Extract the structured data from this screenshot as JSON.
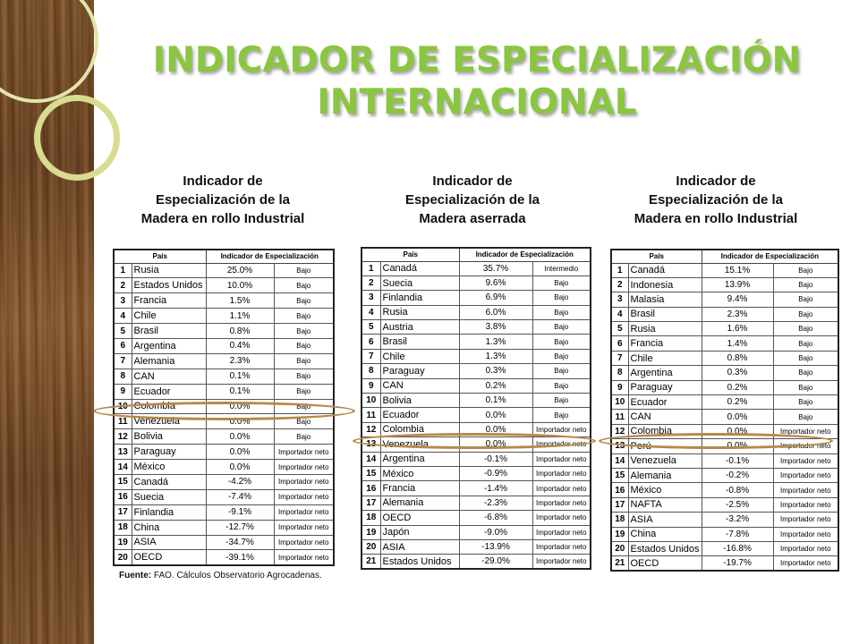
{
  "title": {
    "line1": "INDICADOR DE ESPECIALIZACIÓN",
    "line2": "INTERNACIONAL"
  },
  "colors": {
    "title": "#8ac63f",
    "highlight": "#b8884a"
  },
  "tables": [
    {
      "caption": [
        "Indicador de",
        "Especialización de la",
        "Madera en rollo Industrial"
      ],
      "headers": [
        "País",
        "Indicador de Especialización"
      ],
      "rows": [
        {
          "n": "1",
          "country": "Rusia",
          "value": "25.0%",
          "level": "Bajo"
        },
        {
          "n": "2",
          "country": "Estados Unidos",
          "value": "10.0%",
          "level": "Bajo"
        },
        {
          "n": "3",
          "country": "Francia",
          "value": "1.5%",
          "level": "Bajo"
        },
        {
          "n": "4",
          "country": "Chile",
          "value": "1.1%",
          "level": "Bajo"
        },
        {
          "n": "5",
          "country": "Brasil",
          "value": "0.8%",
          "level": "Bajo"
        },
        {
          "n": "6",
          "country": "Argentina",
          "value": "0.4%",
          "level": "Bajo"
        },
        {
          "n": "7",
          "country": "Alemania",
          "value": "2.3%",
          "level": "Bajo"
        },
        {
          "n": "8",
          "country": "CAN",
          "value": "0.1%",
          "level": "Bajo"
        },
        {
          "n": "9",
          "country": "Ecuador",
          "value": "0.1%",
          "level": "Bajo"
        },
        {
          "n": "10",
          "country": "Colombia",
          "value": "0.0%",
          "level": "Bajo"
        },
        {
          "n": "11",
          "country": "Venezuela",
          "value": "0.0%",
          "level": "Bajo"
        },
        {
          "n": "12",
          "country": "Bolivia",
          "value": "0.0%",
          "level": "Bajo"
        },
        {
          "n": "13",
          "country": "Paraguay",
          "value": "0.0%",
          "level": "Importador neto"
        },
        {
          "n": "14",
          "country": "México",
          "value": "0.0%",
          "level": "Importador neto"
        },
        {
          "n": "15",
          "country": "Canadá",
          "value": "-4.2%",
          "level": "Importador neto"
        },
        {
          "n": "16",
          "country": "Suecia",
          "value": "-7.4%",
          "level": "Importador neto"
        },
        {
          "n": "17",
          "country": "Finlandia",
          "value": "-9.1%",
          "level": "Importador neto"
        },
        {
          "n": "18",
          "country": "China",
          "value": "-12.7%",
          "level": "Importador neto"
        },
        {
          "n": "19",
          "country": "ASIA",
          "value": "-34.7%",
          "level": "Importador neto"
        },
        {
          "n": "20",
          "country": "OECD",
          "value": "-39.1%",
          "level": "Importador neto"
        }
      ]
    },
    {
      "caption": [
        "Indicador de",
        "Especialización de la",
        "Madera aserrada"
      ],
      "headers": [
        "País",
        "Indicador de Especialización"
      ],
      "rows": [
        {
          "n": "1",
          "country": "Canadá",
          "value": "35.7%",
          "level": "Intermedio"
        },
        {
          "n": "2",
          "country": "Suecia",
          "value": "9.6%",
          "level": "Bajo"
        },
        {
          "n": "3",
          "country": "Finlandia",
          "value": "6.9%",
          "level": "Bajo"
        },
        {
          "n": "4",
          "country": "Rusia",
          "value": "6.0%",
          "level": "Bajo"
        },
        {
          "n": "5",
          "country": "Austria",
          "value": "3.8%",
          "level": "Bajo"
        },
        {
          "n": "6",
          "country": "Brasil",
          "value": "1.3%",
          "level": "Bajo"
        },
        {
          "n": "7",
          "country": "Chile",
          "value": "1.3%",
          "level": "Bajo"
        },
        {
          "n": "8",
          "country": "Paraguay",
          "value": "0.3%",
          "level": "Bajo"
        },
        {
          "n": "9",
          "country": "CAN",
          "value": "0.2%",
          "level": "Bajo"
        },
        {
          "n": "10",
          "country": "Bolivia",
          "value": "0.1%",
          "level": "Bajo"
        },
        {
          "n": "11",
          "country": "Ecuador",
          "value": "0.0%",
          "level": "Bajo"
        },
        {
          "n": "12",
          "country": "Colombia",
          "value": "0.0%",
          "level": "Importador neto"
        },
        {
          "n": "13",
          "country": "Venezuela",
          "value": "0.0%",
          "level": "Importador neto"
        },
        {
          "n": "14",
          "country": "Argentina",
          "value": "-0.1%",
          "level": "Importador neto"
        },
        {
          "n": "15",
          "country": "México",
          "value": "-0.9%",
          "level": "Importador neto"
        },
        {
          "n": "16",
          "country": "Francia",
          "value": "-1.4%",
          "level": "Importador neto"
        },
        {
          "n": "17",
          "country": "Alemania",
          "value": "-2.3%",
          "level": "Importador neto"
        },
        {
          "n": "18",
          "country": "OECD",
          "value": "-6.8%",
          "level": "Importador neto"
        },
        {
          "n": "19",
          "country": "Japón",
          "value": "-9.0%",
          "level": "Importador neto"
        },
        {
          "n": "20",
          "country": "ASIA",
          "value": "-13.9%",
          "level": "Importador neto"
        },
        {
          "n": "21",
          "country": "Estados Unidos",
          "value": "-29.0%",
          "level": "Importador neto"
        }
      ]
    },
    {
      "caption": [
        "Indicador de",
        "Especialización de la",
        "Madera en rollo Industrial"
      ],
      "headers": [
        "País",
        "Indicador de Especialización"
      ],
      "rows": [
        {
          "n": "1",
          "country": "Canadá",
          "value": "15.1%",
          "level": "Bajo"
        },
        {
          "n": "2",
          "country": "Indonesia",
          "value": "13.9%",
          "level": "Bajo"
        },
        {
          "n": "3",
          "country": "Malasia",
          "value": "9.4%",
          "level": "Bajo"
        },
        {
          "n": "4",
          "country": "Brasil",
          "value": "2.3%",
          "level": "Bajo"
        },
        {
          "n": "5",
          "country": "Rusia",
          "value": "1.6%",
          "level": "Bajo"
        },
        {
          "n": "6",
          "country": "Francia",
          "value": "1.4%",
          "level": "Bajo"
        },
        {
          "n": "7",
          "country": "Chile",
          "value": "0.8%",
          "level": "Bajo"
        },
        {
          "n": "8",
          "country": "Argentina",
          "value": "0.3%",
          "level": "Bajo"
        },
        {
          "n": "9",
          "country": "Paraguay",
          "value": "0.2%",
          "level": "Bajo"
        },
        {
          "n": "10",
          "country": "Ecuador",
          "value": "0.2%",
          "level": "Bajo"
        },
        {
          "n": "11",
          "country": "CAN",
          "value": "0.0%",
          "level": "Bajo"
        },
        {
          "n": "12",
          "country": "Colombia",
          "value": "0.0%",
          "level": "Importador neto"
        },
        {
          "n": "13",
          "country": "Perú",
          "value": "0.0%",
          "level": "Importador neto"
        },
        {
          "n": "14",
          "country": "Venezuela",
          "value": "-0.1%",
          "level": "Importador neto"
        },
        {
          "n": "15",
          "country": "Alemania",
          "value": "-0.2%",
          "level": "Importador neto"
        },
        {
          "n": "16",
          "country": "México",
          "value": "-0.8%",
          "level": "Importador neto"
        },
        {
          "n": "17",
          "country": "NAFTA",
          "value": "-2.5%",
          "level": "Importador neto"
        },
        {
          "n": "18",
          "country": "ASIA",
          "value": "-3.2%",
          "level": "Importador neto"
        },
        {
          "n": "19",
          "country": "China",
          "value": "-7.8%",
          "level": "Importador neto"
        },
        {
          "n": "20",
          "country": "Estados Unidos",
          "value": "-16.8%",
          "level": "Importador neto"
        },
        {
          "n": "21",
          "country": "OECD",
          "value": "-19.7%",
          "level": "Importador neto"
        }
      ]
    }
  ],
  "source": {
    "label": "Fuente:",
    "text": " FAO. Cálculos Observatorio Agrocadenas."
  }
}
